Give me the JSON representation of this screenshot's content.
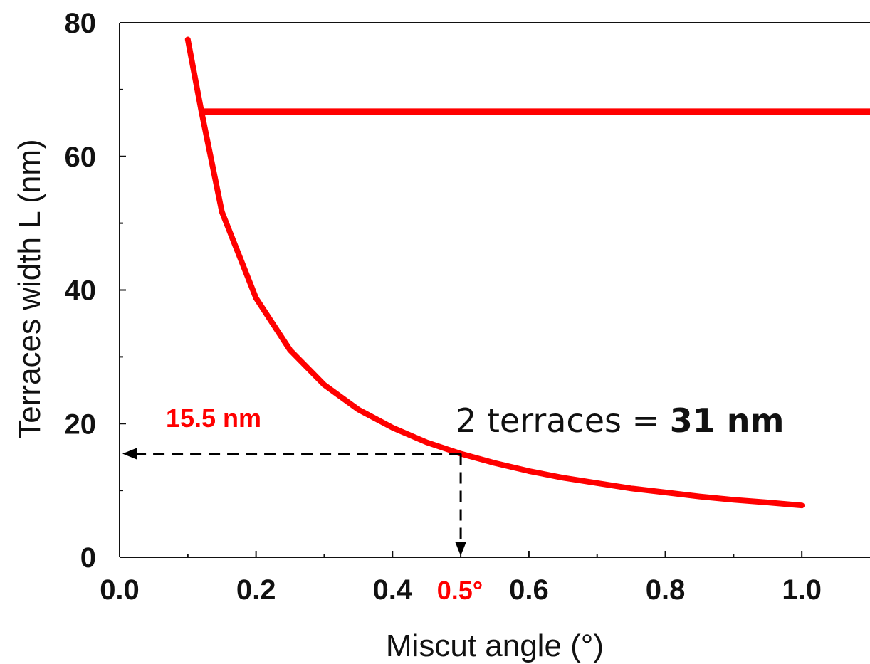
{
  "chart_data": {
    "type": "line",
    "xlabel": "Miscut angle (°)",
    "ylabel": "Terraces width L (nm)",
    "xlim": [
      0.0,
      1.1
    ],
    "ylim": [
      0,
      80
    ],
    "x_ticks": [
      "0.0",
      "0.2",
      "0.4",
      "0.6",
      "0.8",
      "1.0"
    ],
    "y_ticks": [
      "0",
      "20",
      "40",
      "60",
      "80"
    ],
    "grid": false,
    "series": [
      {
        "x": [
          0.1,
          0.12,
          0.15,
          0.2,
          0.25,
          0.3,
          0.35,
          0.4,
          0.45,
          0.5,
          0.55,
          0.6,
          0.65,
          0.7,
          0.75,
          0.8,
          0.85,
          0.9,
          0.95,
          1.0
        ],
        "y": [
          77.5,
          66.7,
          51.7,
          38.8,
          31.0,
          25.8,
          22.1,
          19.4,
          17.2,
          15.5,
          14.1,
          12.9,
          11.9,
          11.1,
          10.3,
          9.7,
          9.1,
          8.6,
          8.2,
          7.75
        ]
      }
    ],
    "horizontal_line": {
      "y": 66.7,
      "x_start": 0.12,
      "x_end": 1.1
    },
    "marker": {
      "x": 0.5,
      "y": 15.5
    },
    "annotations": {
      "value_label": "15.5 nm",
      "angle_label": "0.5°",
      "note_prefix": "2 terraces = ",
      "note_bold": "31 nm"
    },
    "colors": {
      "curve": "#ff0000",
      "axis": "#111111",
      "guide": "#000000"
    }
  }
}
